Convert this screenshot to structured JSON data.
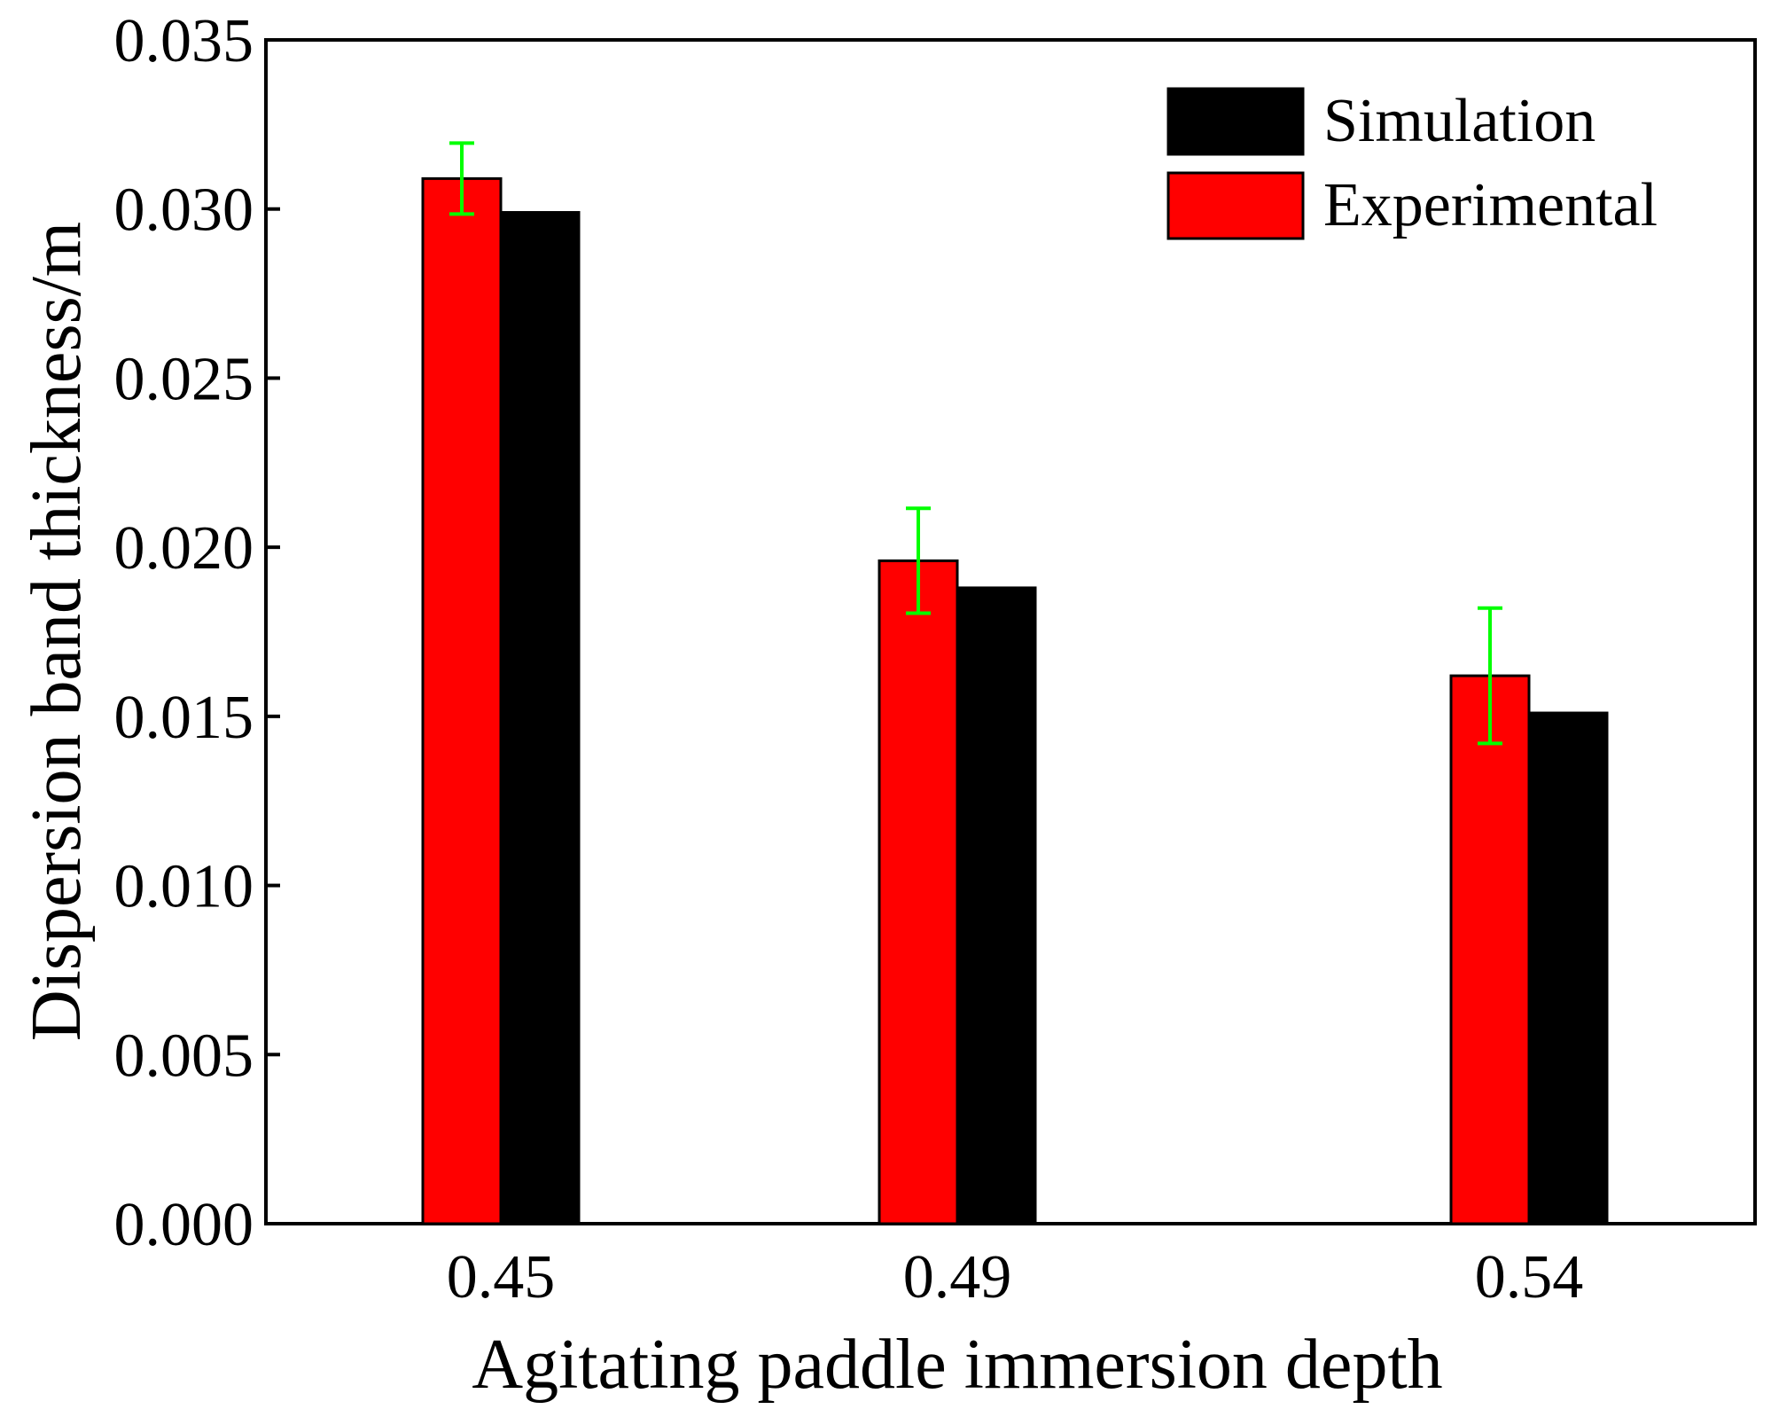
{
  "chart_data": {
    "type": "bar",
    "title": "",
    "xlabel": "Agitating paddle immersion depth",
    "ylabel": "Dispersion band thickness/m",
    "categories": [
      "0.45",
      "0.49",
      "0.54"
    ],
    "ylim": [
      0,
      0.035
    ],
    "yticks": [
      "0.000",
      "0.005",
      "0.010",
      "0.015",
      "0.020",
      "0.025",
      "0.030",
      "0.035"
    ],
    "legend_position": "top-right",
    "grid": false,
    "series": [
      {
        "name": "Experimental",
        "color": "#ff0000",
        "values": [
          0.0309,
          0.0196,
          0.0162
        ],
        "error": [
          0.00105,
          0.00155,
          0.002
        ],
        "error_color": "#00ff00"
      },
      {
        "name": "Simulation",
        "color": "#000000",
        "values": [
          0.0299,
          0.0188,
          0.0151
        ]
      }
    ]
  }
}
